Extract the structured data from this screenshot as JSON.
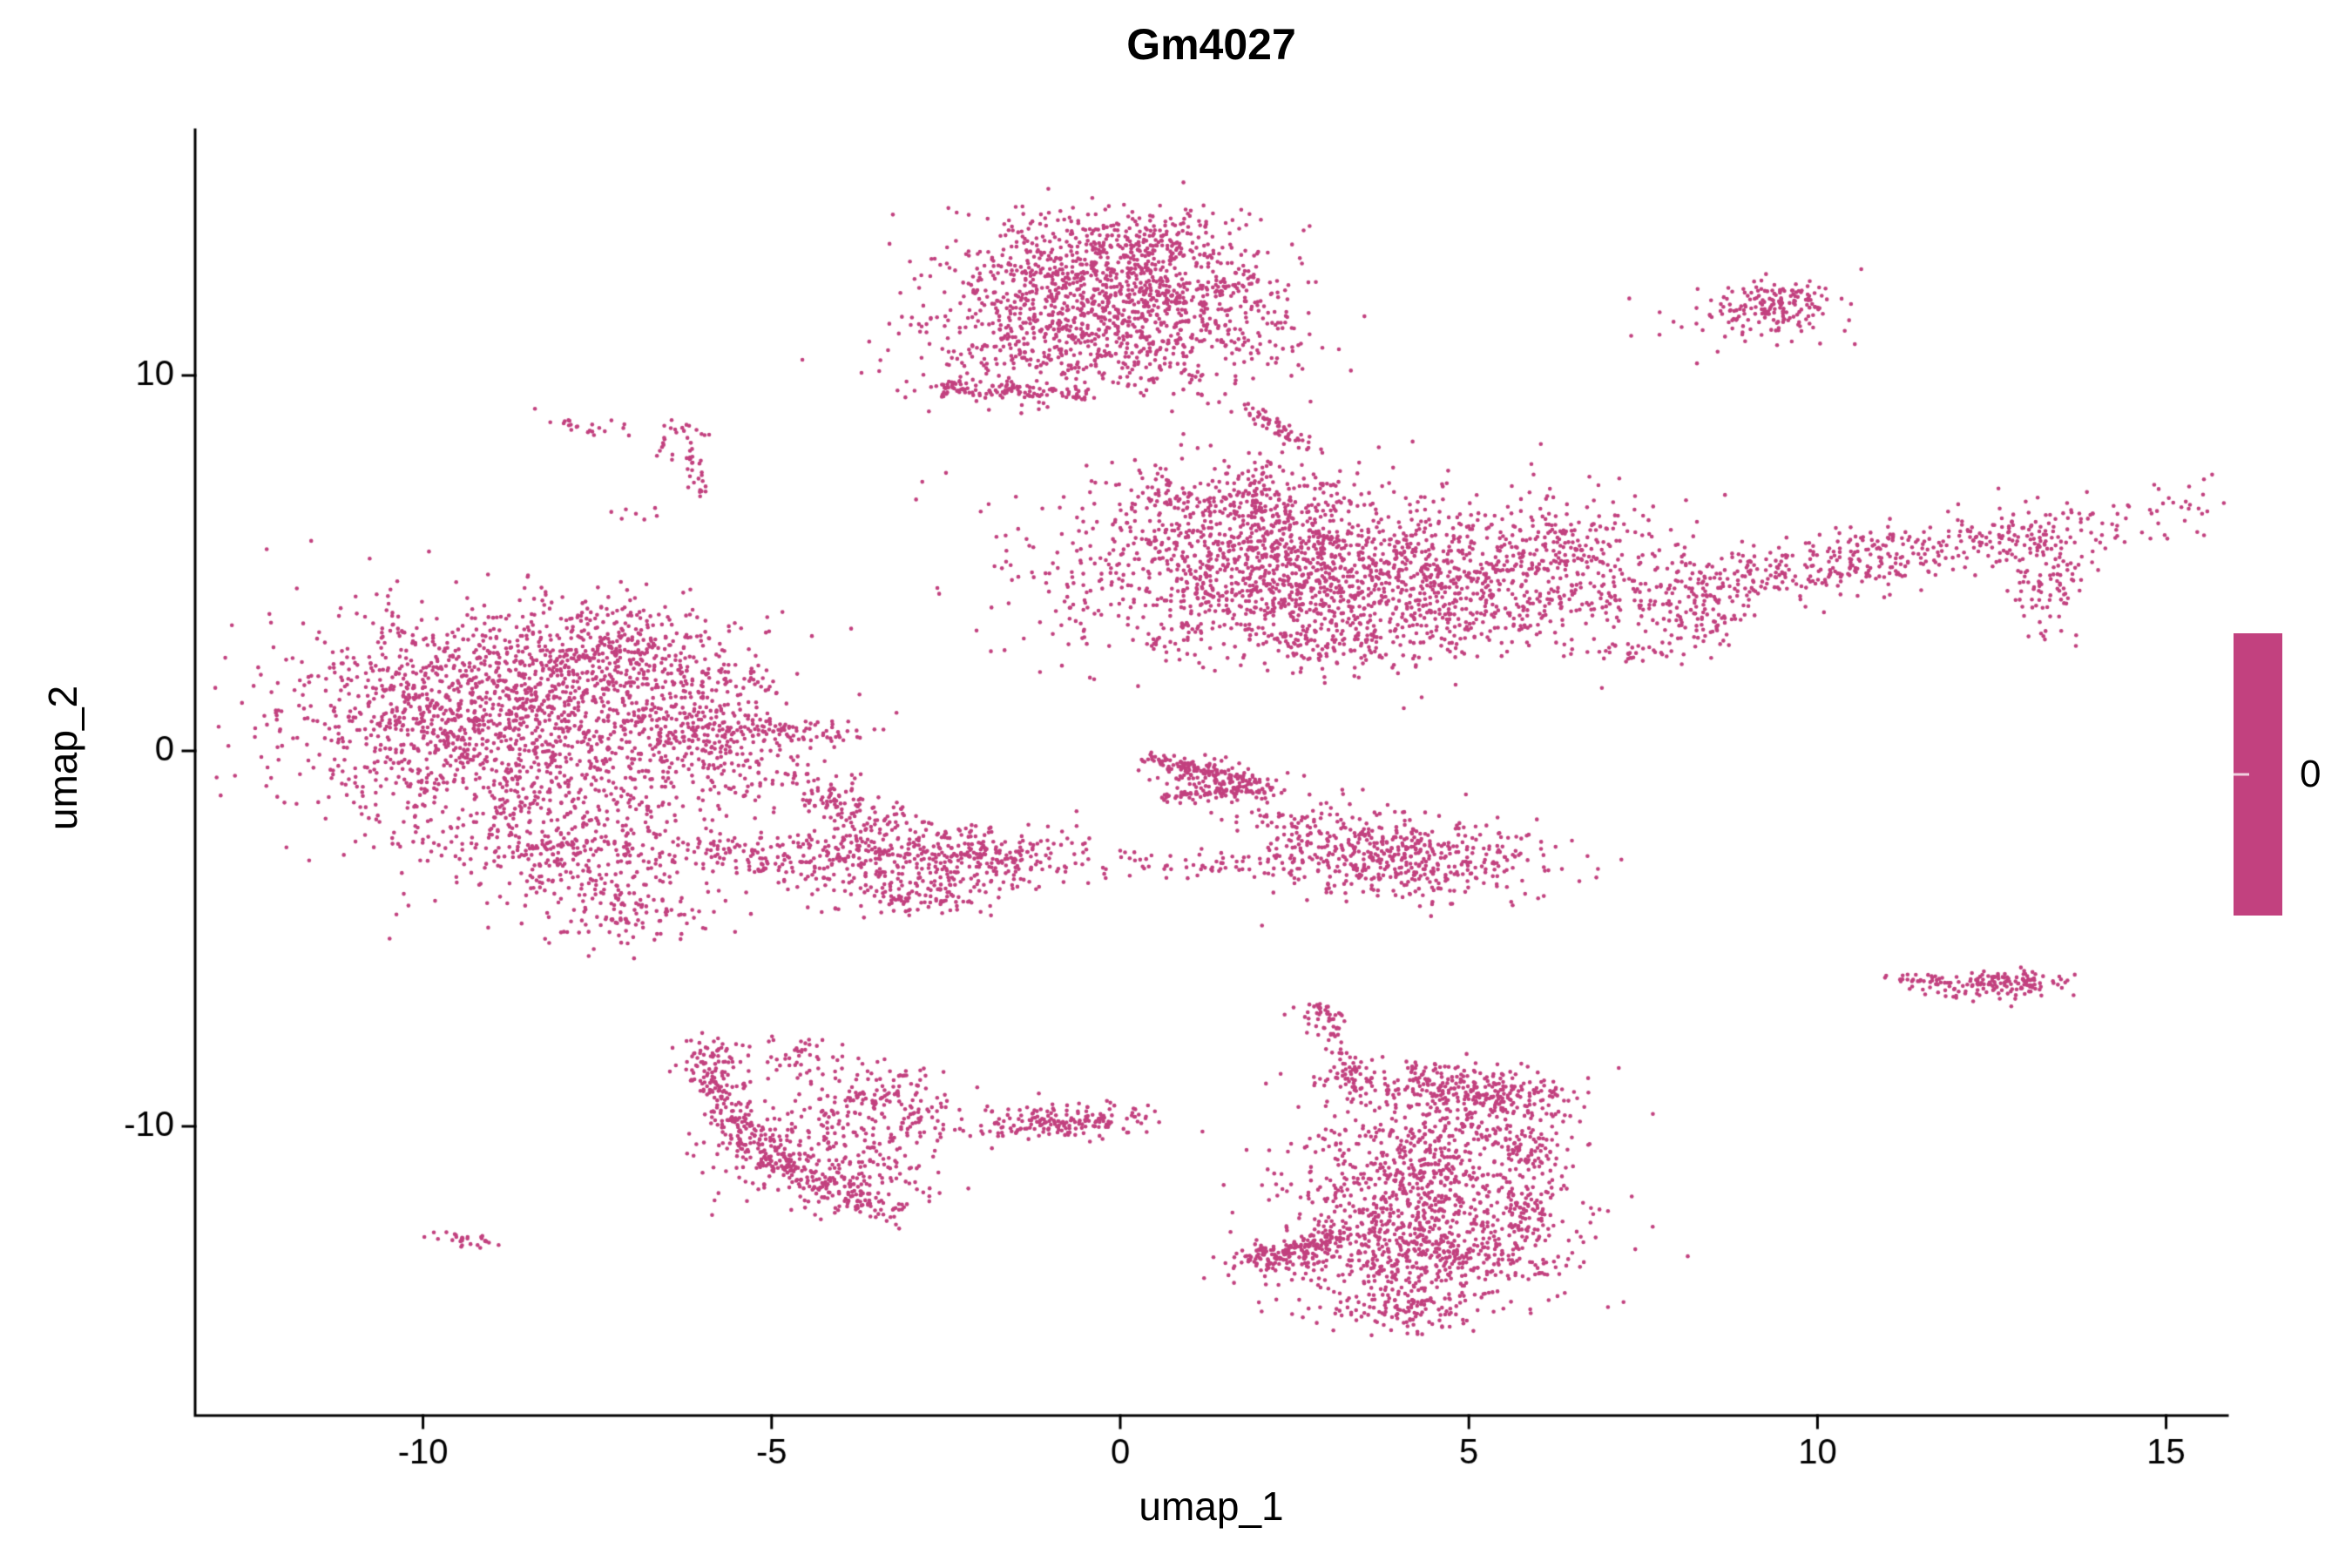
{
  "title": "Gm4027",
  "axes": {
    "x_label": "umap_1",
    "y_label": "umap_2"
  },
  "legend": {
    "label": "0"
  },
  "colors": {
    "point": "#C2417F",
    "axis": "#000000",
    "background": "#FFFFFF"
  },
  "chart_data": {
    "type": "scatter",
    "title": "Gm4027",
    "xlabel": "umap_1",
    "ylabel": "umap_2",
    "xlim": [
      -13.3,
      15.9
    ],
    "ylim": [
      -17.7,
      16.5
    ],
    "x_ticks": [
      -10,
      -5,
      0,
      5,
      10,
      15
    ],
    "y_ticks": [
      10,
      0,
      -10
    ],
    "grid": false,
    "legend_position": "right",
    "legend_values": [
      0
    ],
    "series_name": "Gm4027 expression",
    "point_color": "#C2417F",
    "point_radius_px": 2.3,
    "clusters": [
      {
        "type": "gauss",
        "cx": -0.4,
        "cy": 12.4,
        "sx": 1.15,
        "sy": 0.95,
        "rot": 0,
        "n": 900
      },
      {
        "type": "gauss",
        "cx": -0.7,
        "cy": 10.6,
        "sx": 1.3,
        "sy": 0.65,
        "rot": 0,
        "n": 320
      },
      {
        "type": "gauss",
        "cx": 1.1,
        "cy": 11.6,
        "sx": 0.75,
        "sy": 1.0,
        "rot": 0,
        "n": 260
      },
      {
        "type": "gauss",
        "cx": 0.3,
        "cy": 13.6,
        "sx": 0.7,
        "sy": 0.35,
        "rot": 10,
        "n": 120
      },
      {
        "type": "line",
        "x1": -2.35,
        "y1": 9.65,
        "x2": -0.5,
        "y2": 9.5,
        "w": 0.12,
        "n": 90
      },
      {
        "type": "gauss",
        "cx": -2.45,
        "cy": 9.7,
        "sx": 0.12,
        "sy": 0.12,
        "rot": 0,
        "n": 25
      },
      {
        "type": "line",
        "x1": 1.85,
        "y1": 9.1,
        "x2": 2.75,
        "y2": 7.95,
        "w": 0.1,
        "n": 55
      },
      {
        "type": "gauss",
        "cx": -7.6,
        "cy": 8.6,
        "sx": 0.3,
        "sy": 0.13,
        "rot": -10,
        "n": 22
      },
      {
        "type": "gauss",
        "cx": -6.3,
        "cy": 8.4,
        "sx": 0.18,
        "sy": 0.28,
        "rot": 0,
        "n": 28
      },
      {
        "type": "line",
        "x1": -6.15,
        "y1": 7.9,
        "x2": -6.05,
        "y2": 6.9,
        "w": 0.08,
        "n": 22
      },
      {
        "type": "gauss",
        "cx": -6.9,
        "cy": 6.3,
        "sx": 0.25,
        "sy": 0.12,
        "rot": 0,
        "n": 6
      },
      {
        "type": "gauss",
        "cx": 2.2,
        "cy": 4.9,
        "sx": 1.55,
        "sy": 1.15,
        "rot": 0,
        "n": 1400
      },
      {
        "type": "gauss",
        "cx": 1.4,
        "cy": 6.8,
        "sx": 0.85,
        "sy": 0.45,
        "rot": -5,
        "n": 180
      },
      {
        "type": "gauss",
        "cx": 4.7,
        "cy": 4.5,
        "sx": 1.15,
        "sy": 0.95,
        "rot": 0,
        "n": 450
      },
      {
        "type": "gauss",
        "cx": 6.6,
        "cy": 5.4,
        "sx": 0.85,
        "sy": 0.75,
        "rot": 0,
        "n": 230
      },
      {
        "type": "gauss",
        "cx": 10.3,
        "cy": 5.0,
        "sx": 2.7,
        "sy": 0.42,
        "rot": 17,
        "n": 600
      },
      {
        "type": "gauss",
        "cx": 13.3,
        "cy": 4.7,
        "sx": 0.3,
        "sy": 0.75,
        "rot": 0,
        "n": 110
      },
      {
        "type": "gauss",
        "cx": 3.4,
        "cy": 2.9,
        "sx": 1.1,
        "sy": 0.35,
        "rot": 0,
        "n": 130
      },
      {
        "type": "gauss",
        "cx": 7.4,
        "cy": 2.6,
        "sx": 0.45,
        "sy": 0.18,
        "rot": 0,
        "n": 35
      },
      {
        "type": "gauss",
        "cx": 8.3,
        "cy": 3.4,
        "sx": 0.4,
        "sy": 0.3,
        "rot": 0,
        "n": 60
      },
      {
        "type": "gauss",
        "cx": 9.4,
        "cy": 11.9,
        "sx": 0.4,
        "sy": 0.32,
        "rot": 0,
        "n": 150
      },
      {
        "type": "gauss",
        "cx": 9.2,
        "cy": 11.6,
        "sx": 0.75,
        "sy": 0.55,
        "rot": 0,
        "n": 40
      },
      {
        "type": "gauss",
        "cx": -9.2,
        "cy": 0.9,
        "sx": 1.45,
        "sy": 1.4,
        "rot": 0,
        "n": 1450
      },
      {
        "type": "gauss",
        "cx": -7.4,
        "cy": 2.6,
        "sx": 1.0,
        "sy": 0.7,
        "rot": 0,
        "n": 380
      },
      {
        "type": "gauss",
        "cx": -6.3,
        "cy": 0.3,
        "sx": 0.85,
        "sy": 0.85,
        "rot": 0,
        "n": 330
      },
      {
        "type": "gauss",
        "cx": -7.9,
        "cy": -2.5,
        "sx": 1.15,
        "sy": 0.85,
        "rot": 0,
        "n": 430
      },
      {
        "type": "gauss",
        "cx": -7.0,
        "cy": -4.3,
        "sx": 0.5,
        "sy": 0.45,
        "rot": 0,
        "n": 110
      },
      {
        "type": "gauss",
        "cx": -5.0,
        "cy": 0.5,
        "sx": 0.65,
        "sy": 0.22,
        "rot": 0,
        "n": 110
      },
      {
        "type": "gauss",
        "cx": -5.6,
        "cy": 1.9,
        "sx": 0.35,
        "sy": 0.25,
        "rot": 0,
        "n": 45
      },
      {
        "type": "gauss",
        "cx": -4.0,
        "cy": -1.4,
        "sx": 0.85,
        "sy": 0.28,
        "rot": -40,
        "n": 140
      },
      {
        "type": "gauss",
        "cx": -5.3,
        "cy": -2.7,
        "sx": 0.4,
        "sy": 0.3,
        "rot": 0,
        "n": 60
      },
      {
        "type": "gauss",
        "cx": -3.6,
        "cy": -2.9,
        "sx": 0.85,
        "sy": 0.5,
        "rot": 0,
        "n": 280
      },
      {
        "type": "gauss",
        "cx": -1.9,
        "cy": -2.8,
        "sx": 0.75,
        "sy": 0.45,
        "rot": 0,
        "n": 230
      },
      {
        "type": "gauss",
        "cx": -2.9,
        "cy": -3.9,
        "sx": 0.55,
        "sy": 0.25,
        "rot": 0,
        "n": 90
      },
      {
        "type": "line",
        "x1": 0.35,
        "y1": -0.2,
        "x2": 2.05,
        "y2": -0.9,
        "w": 0.09,
        "n": 110
      },
      {
        "type": "line",
        "x1": 0.6,
        "y1": -1.25,
        "x2": 2.1,
        "y2": -1.0,
        "w": 0.09,
        "n": 80
      },
      {
        "type": "gauss",
        "cx": 1.4,
        "cy": -0.75,
        "sx": 0.55,
        "sy": 0.3,
        "rot": -15,
        "n": 90
      },
      {
        "type": "gauss",
        "cx": 4.2,
        "cy": -2.9,
        "sx": 0.95,
        "sy": 0.55,
        "rot": 0,
        "n": 430
      },
      {
        "type": "gauss",
        "cx": 2.9,
        "cy": -2.1,
        "sx": 0.75,
        "sy": 0.4,
        "rot": 0,
        "n": 120
      },
      {
        "type": "gauss",
        "cx": 1.5,
        "cy": -3.0,
        "sx": 0.95,
        "sy": 0.22,
        "rot": 0,
        "n": 70
      },
      {
        "type": "gauss",
        "cx": 12.6,
        "cy": -6.2,
        "sx": 0.5,
        "sy": 0.18,
        "rot": 5,
        "n": 150
      },
      {
        "type": "gauss",
        "cx": 11.35,
        "cy": -6.05,
        "sx": 0.22,
        "sy": 0.06,
        "rot": 0,
        "n": 22
      },
      {
        "type": "arc",
        "x1": -5.9,
        "y1": -7.8,
        "cx": -5.9,
        "cy": -10.8,
        "x2": -3.2,
        "y2": -12.3,
        "w": 0.22,
        "n": 420
      },
      {
        "type": "gauss",
        "cx": -4.1,
        "cy": -10.6,
        "sx": 0.85,
        "sy": 0.85,
        "rot": 0,
        "n": 260
      },
      {
        "type": "gauss",
        "cx": -3.4,
        "cy": -9.3,
        "sx": 0.45,
        "sy": 0.55,
        "rot": 0,
        "n": 130
      },
      {
        "type": "gauss",
        "cx": -4.5,
        "cy": -8.1,
        "sx": 0.4,
        "sy": 0.3,
        "rot": 0,
        "n": 40
      },
      {
        "type": "gauss",
        "cx": -0.9,
        "cy": -9.9,
        "sx": 0.7,
        "sy": 0.25,
        "rot": 0,
        "n": 190
      },
      {
        "type": "line",
        "x1": 2.95,
        "y1": -7.1,
        "x2": 3.35,
        "y2": -9.0,
        "w": 0.12,
        "n": 60
      },
      {
        "type": "gauss",
        "cx": 2.9,
        "cy": -6.9,
        "sx": 0.18,
        "sy": 0.13,
        "rot": 0,
        "n": 25
      },
      {
        "type": "gauss",
        "cx": 4.3,
        "cy": -8.85,
        "sx": 0.85,
        "sy": 0.3,
        "rot": 0,
        "n": 160
      },
      {
        "type": "gauss",
        "cx": 5.3,
        "cy": -9.3,
        "sx": 0.65,
        "sy": 0.45,
        "rot": 0,
        "n": 240
      },
      {
        "type": "gauss",
        "cx": 4.5,
        "cy": -10.3,
        "sx": 0.8,
        "sy": 0.4,
        "rot": 0,
        "n": 130
      },
      {
        "type": "gauss",
        "cx": 4.3,
        "cy": -11.6,
        "sx": 0.95,
        "sy": 0.75,
        "rot": 0,
        "n": 480
      },
      {
        "type": "gauss",
        "cx": 4.4,
        "cy": -13.3,
        "sx": 1.05,
        "sy": 0.65,
        "rot": 0,
        "n": 560
      },
      {
        "type": "line",
        "x1": 1.9,
        "y1": -13.6,
        "x2": 3.2,
        "y2": -12.9,
        "w": 0.14,
        "n": 110
      },
      {
        "type": "gauss",
        "cx": 2.3,
        "cy": -13.5,
        "sx": 0.35,
        "sy": 0.22,
        "rot": 0,
        "n": 70
      },
      {
        "type": "gauss",
        "cx": 4.1,
        "cy": -14.8,
        "sx": 0.65,
        "sy": 0.3,
        "rot": 0,
        "n": 130
      },
      {
        "type": "gauss",
        "cx": 5.9,
        "cy": -12.3,
        "sx": 0.28,
        "sy": 0.5,
        "rot": 0,
        "n": 70
      },
      {
        "type": "gauss",
        "cx": 5.8,
        "cy": -10.7,
        "sx": 0.3,
        "sy": 0.3,
        "rot": 0,
        "n": 50
      },
      {
        "type": "gauss",
        "cx": -9.35,
        "cy": -13.0,
        "sx": 0.28,
        "sy": 0.1,
        "rot": -8,
        "n": 28
      }
    ]
  }
}
